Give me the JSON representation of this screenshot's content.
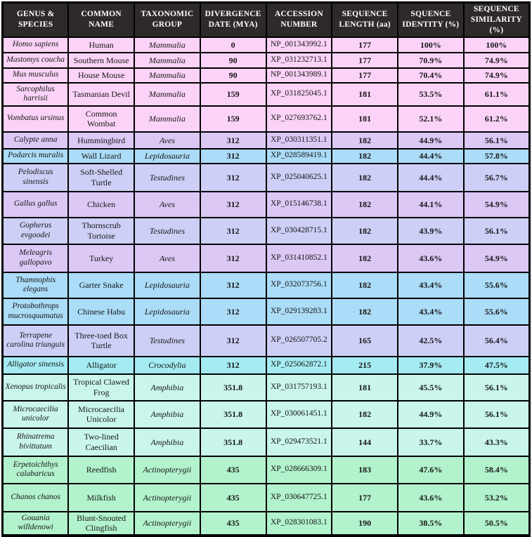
{
  "chart_data": {
    "type": "table",
    "columns": [
      {
        "key": "genus",
        "label": "GENUS &\nSPECIES"
      },
      {
        "key": "common",
        "label": "COMMON NAME"
      },
      {
        "key": "group",
        "label": "TAXONOMIC\nGROUP"
      },
      {
        "key": "divergence",
        "label": "DIVERGENCE\nDATE (MYA)"
      },
      {
        "key": "accession",
        "label": "ACCESSION\nNUMBER"
      },
      {
        "key": "length",
        "label": "SEQUENCE\nLENGTH (aa)"
      },
      {
        "key": "identity",
        "label": "SQUENCE\nIDENTITY (%)"
      },
      {
        "key": "similarity",
        "label": "SEQUENCE\nSIMILARITY (%)"
      }
    ],
    "rows": [
      {
        "genus": "Homo sapiens",
        "common": "Human",
        "group": "Mammalia",
        "divergence": "0",
        "accession": "NP_001343992.1",
        "length": "177",
        "identity": "100%",
        "similarity": "100%"
      },
      {
        "genus": "Mastomys coucha",
        "common": "Southern Mouse",
        "group": "Mammalia",
        "divergence": "90",
        "accession": "XP_031232713.1",
        "length": "177",
        "identity": "70.9%",
        "similarity": "74.9%"
      },
      {
        "genus": "Mus musculus",
        "common": "House Mouse",
        "group": "Mammalia",
        "divergence": "90",
        "accession": "NP_001343989.1",
        "length": "177",
        "identity": "70.4%",
        "similarity": "74.9%"
      },
      {
        "genus": "Sarcophilus harrisii",
        "common": "Tasmanian Devil",
        "group": "Mammalia",
        "divergence": "159",
        "accession": "XP_031825045.1",
        "length": "181",
        "identity": "53.5%",
        "similarity": "61.1%"
      },
      {
        "genus": "Vombatus ursinus",
        "common": "Common Wombat",
        "group": "Mammalia",
        "divergence": "159",
        "accession": "XP_027693762.1",
        "length": "181",
        "identity": "52.1%",
        "similarity": "61.2%"
      },
      {
        "genus": "Calypte anna",
        "common": "Hummingbird",
        "group": "Aves",
        "divergence": "312",
        "accession": "XP_030311351.1",
        "length": "182",
        "identity": "44.9%",
        "similarity": "56.1%"
      },
      {
        "genus": "Podarcis muralis",
        "common": "Wall Lizard",
        "group": "Lepidosauria",
        "divergence": "312",
        "accession": "XP_028589419.1",
        "length": "182",
        "identity": "44.4%",
        "similarity": "57.8%"
      },
      {
        "genus": "Pelodiscus sinensis",
        "common": "Soft-Shelled Turtle",
        "group": "Testudines",
        "divergence": "312",
        "accession": "XP_025040625.1",
        "length": "182",
        "identity": "44.4%",
        "similarity": "56.7%"
      },
      {
        "genus": "Gallus gallus",
        "common": "Chicken",
        "group": "Aves",
        "divergence": "312",
        "accession": "XP_015146738.1",
        "length": "182",
        "identity": "44.1%",
        "similarity": "54.9%"
      },
      {
        "genus": "Gopherus evgoodei",
        "common": "Thornscrub Tortoise",
        "group": "Testudines",
        "divergence": "312",
        "accession": "XP_030428715.1",
        "length": "182",
        "identity": "43.9%",
        "similarity": "56.1%"
      },
      {
        "genus": "Meleagris gallopavo",
        "common": "Turkey",
        "group": "Aves",
        "divergence": "312",
        "accession": "XP_031410852.1",
        "length": "182",
        "identity": "43.6%",
        "similarity": "54.9%"
      },
      {
        "genus": "Thamnophis elegans",
        "common": "Garter Snake",
        "group": "Lepidosauria",
        "divergence": "312",
        "accession": "XP_032073756.1",
        "length": "182",
        "identity": "43.4%",
        "similarity": "55.6%"
      },
      {
        "genus": "Protobothrops mucrosquamatus",
        "common": "Chinese Habu",
        "group": "Lepidosauria",
        "divergence": "312",
        "accession": "XP_029139283.1",
        "length": "182",
        "identity": "43.4%",
        "similarity": "55.6%"
      },
      {
        "genus": "Terrapene carolina triunguis",
        "common": "Three-toed Box Turtle",
        "group": "Testudines",
        "divergence": "312",
        "accession": "XP_026507705.2",
        "length": "165",
        "identity": "42.5%",
        "similarity": "56.4%"
      },
      {
        "genus": "Alligator sinensis",
        "common": "Alligator",
        "group": "Crocodylia",
        "divergence": "312",
        "accession": "XP_025062872.1",
        "length": "215",
        "identity": "37.9%",
        "similarity": "47.5%"
      },
      {
        "genus": "Xenopus tropicalis",
        "common": "Tropical Clawed Frog",
        "group": "Amphibia",
        "divergence": "351.8",
        "accession": "XP_031757193.1",
        "length": "181",
        "identity": "45.5%",
        "similarity": "56.1%"
      },
      {
        "genus": "Microcaecilia unicolor",
        "common": "Microcaecilia Unicolor",
        "group": "Amphibia",
        "divergence": "351.8",
        "accession": "XP_030061451.1",
        "length": "182",
        "identity": "44.9%",
        "similarity": "56.1%"
      },
      {
        "genus": "Rhinatrema bivittatum",
        "common": "Two-lined Caecilian",
        "group": "Amphibia",
        "divergence": "351.8",
        "accession": "XP_029473521.1",
        "length": "144",
        "identity": "33.7%",
        "similarity": "43.3%"
      },
      {
        "genus": "Erpetoichthys calabaricus",
        "common": "Reedfish",
        "group": "Actinopterygii",
        "divergence": "435",
        "accession": "XP_028666309.1",
        "length": "183",
        "identity": "47.6%",
        "similarity": "58.4%"
      },
      {
        "genus": "Chanos chanos",
        "common": "Milkfish",
        "group": "Actinopterygii",
        "divergence": "435",
        "accession": "XP_030647725.1",
        "length": "177",
        "identity": "43.6%",
        "similarity": "53.2%"
      },
      {
        "genus": "Gouania willdenowi",
        "common": "Blunt-Snouted Clingfish",
        "group": "Actinopterygii",
        "divergence": "435",
        "accession": "XP_028301083.1",
        "length": "190",
        "identity": "38.5%",
        "similarity": "50.5%"
      }
    ]
  },
  "group_colors": {
    "Mammalia": "#fbd3f8",
    "Aves": "#dbc8f5",
    "Lepidosauria": "#abdcf8",
    "Testudines": "#cdcff7",
    "Crocodylia": "#a4ecf2",
    "Amphibia": "#c9f5ec",
    "Actinopterygii": "#b2f2cd"
  },
  "colors": {
    "header_bg": "#2e2a2b",
    "header_text": "#ffffff",
    "border": "#000000",
    "cell_text": "#161616"
  }
}
